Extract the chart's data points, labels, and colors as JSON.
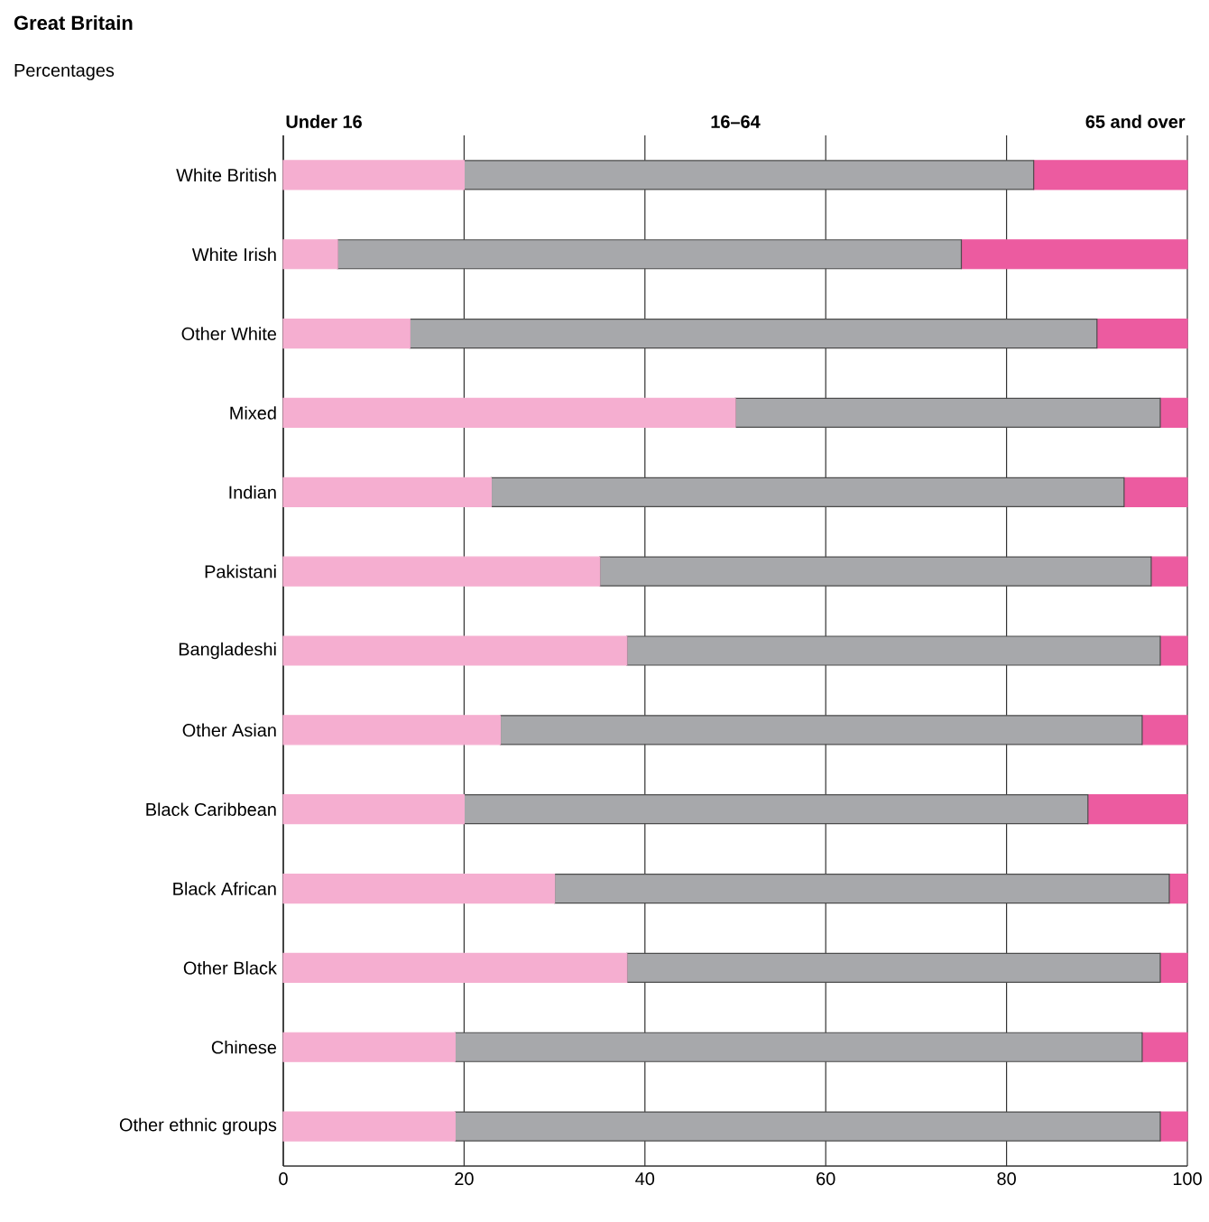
{
  "chart_data": {
    "type": "bar",
    "orientation": "horizontal",
    "stacked": true,
    "title": "Great Britain",
    "subtitle": "Percentages",
    "categories": [
      "White British",
      "White Irish",
      "Other White",
      "Mixed",
      "Indian",
      "Pakistani",
      "Bangladeshi",
      "Other Asian",
      "Black Caribbean",
      "Black African",
      "Other Black",
      "Chinese",
      "Other ethnic groups"
    ],
    "series": [
      {
        "name": "Under 16",
        "color": "#f5aed0",
        "values": [
          20,
          6,
          14,
          50,
          23,
          35,
          38,
          24,
          20,
          30,
          38,
          19,
          19
        ]
      },
      {
        "name": "16–64",
        "color": "#a7a8ab",
        "values": [
          63,
          69,
          76,
          47,
          70,
          61,
          59,
          71,
          69,
          68,
          59,
          76,
          78
        ]
      },
      {
        "name": "65 and over",
        "color": "#ec5ba0",
        "values": [
          17,
          25,
          10,
          3,
          7,
          4,
          3,
          5,
          11,
          2,
          3,
          5,
          3
        ]
      }
    ],
    "xlim": [
      0,
      100
    ],
    "xticks": [
      0,
      20,
      40,
      60,
      80,
      100
    ],
    "grid": "x",
    "legend": "top"
  }
}
